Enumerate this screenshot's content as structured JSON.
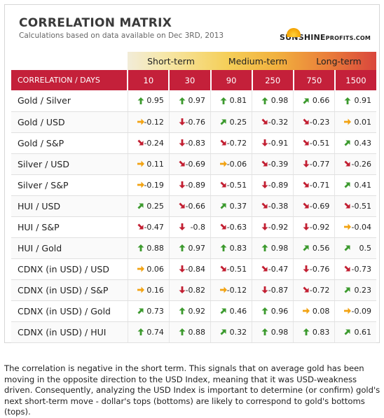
{
  "header": {
    "title": "CORRELATION MATRIX",
    "subtitle": "Calculations based on data available on Dec 3RD, 2013",
    "logo_main": "SUNSHINE",
    "logo_suffix": "PROFITS.COM"
  },
  "terms": {
    "short": "Short-term",
    "medium": "Medium-term",
    "long": "Long-term"
  },
  "columns": {
    "label": "CORRELATION / DAYS",
    "days": [
      "10",
      "30",
      "90",
      "250",
      "750",
      "1500"
    ]
  },
  "arrow_colors": {
    "up": "#3c9a2e",
    "up_diag": "#3c9a2e",
    "flat": "#f2a313",
    "down_diag": "#c21f32",
    "down": "#c21f32"
  },
  "rows": [
    {
      "pair": "Gold / Silver",
      "cells": [
        {
          "v": "0.95",
          "a": "up"
        },
        {
          "v": "0.97",
          "a": "up"
        },
        {
          "v": "0.81",
          "a": "up"
        },
        {
          "v": "0.98",
          "a": "up"
        },
        {
          "v": "0.66",
          "a": "up_diag"
        },
        {
          "v": "0.91",
          "a": "up"
        }
      ]
    },
    {
      "pair": "Gold / USD",
      "cells": [
        {
          "v": "-0.12",
          "a": "flat"
        },
        {
          "v": "-0.76",
          "a": "down"
        },
        {
          "v": "0.25",
          "a": "up_diag"
        },
        {
          "v": "-0.32",
          "a": "down_diag"
        },
        {
          "v": "-0.23",
          "a": "down_diag"
        },
        {
          "v": "0.01",
          "a": "flat"
        }
      ]
    },
    {
      "pair": "Gold / S&P",
      "cells": [
        {
          "v": "-0.24",
          "a": "down_diag"
        },
        {
          "v": "-0.83",
          "a": "down"
        },
        {
          "v": "-0.72",
          "a": "down_diag"
        },
        {
          "v": "-0.91",
          "a": "down"
        },
        {
          "v": "-0.51",
          "a": "down_diag"
        },
        {
          "v": "0.43",
          "a": "up_diag"
        }
      ]
    },
    {
      "pair": "Silver / USD",
      "cells": [
        {
          "v": "0.11",
          "a": "flat"
        },
        {
          "v": "-0.69",
          "a": "down_diag"
        },
        {
          "v": "-0.06",
          "a": "flat"
        },
        {
          "v": "-0.39",
          "a": "down_diag"
        },
        {
          "v": "-0.77",
          "a": "down"
        },
        {
          "v": "-0.26",
          "a": "down_diag"
        }
      ]
    },
    {
      "pair": "Silver / S&P",
      "cells": [
        {
          "v": "-0.19",
          "a": "flat"
        },
        {
          "v": "-0.89",
          "a": "down"
        },
        {
          "v": "-0.51",
          "a": "down_diag"
        },
        {
          "v": "-0.89",
          "a": "down"
        },
        {
          "v": "-0.71",
          "a": "down_diag"
        },
        {
          "v": "0.41",
          "a": "up_diag"
        }
      ]
    },
    {
      "pair": "HUI / USD",
      "cells": [
        {
          "v": "0.25",
          "a": "up_diag"
        },
        {
          "v": "-0.66",
          "a": "down_diag"
        },
        {
          "v": "0.37",
          "a": "up_diag"
        },
        {
          "v": "-0.38",
          "a": "down_diag"
        },
        {
          "v": "-0.69",
          "a": "down_diag"
        },
        {
          "v": "-0.51",
          "a": "down_diag"
        }
      ]
    },
    {
      "pair": "HUI / S&P",
      "cells": [
        {
          "v": "-0.47",
          "a": "down_diag"
        },
        {
          "v": "-0.8",
          "a": "down"
        },
        {
          "v": "-0.63",
          "a": "down_diag"
        },
        {
          "v": "-0.92",
          "a": "down"
        },
        {
          "v": "-0.92",
          "a": "down"
        },
        {
          "v": "-0.04",
          "a": "flat"
        }
      ]
    },
    {
      "pair": "HUI / Gold",
      "cells": [
        {
          "v": "0.88",
          "a": "up"
        },
        {
          "v": "0.97",
          "a": "up"
        },
        {
          "v": "0.83",
          "a": "up"
        },
        {
          "v": "0.98",
          "a": "up"
        },
        {
          "v": "0.56",
          "a": "up_diag"
        },
        {
          "v": "0.5",
          "a": "up_diag"
        }
      ]
    },
    {
      "pair": "CDNX (in USD) / USD",
      "cells": [
        {
          "v": "0.06",
          "a": "flat"
        },
        {
          "v": "-0.84",
          "a": "down"
        },
        {
          "v": "-0.51",
          "a": "down_diag"
        },
        {
          "v": "-0.47",
          "a": "down_diag"
        },
        {
          "v": "-0.76",
          "a": "down"
        },
        {
          "v": "-0.73",
          "a": "down_diag"
        }
      ]
    },
    {
      "pair": "CDNX (in USD) / S&P",
      "cells": [
        {
          "v": "0.16",
          "a": "flat"
        },
        {
          "v": "-0.82",
          "a": "down"
        },
        {
          "v": "-0.12",
          "a": "flat"
        },
        {
          "v": "-0.87",
          "a": "down"
        },
        {
          "v": "-0.72",
          "a": "down_diag"
        },
        {
          "v": "0.23",
          "a": "up_diag"
        }
      ]
    },
    {
      "pair": "CDNX (in USD) / Gold",
      "cells": [
        {
          "v": "0.73",
          "a": "up_diag"
        },
        {
          "v": "0.92",
          "a": "up"
        },
        {
          "v": "0.46",
          "a": "up_diag"
        },
        {
          "v": "0.96",
          "a": "up"
        },
        {
          "v": "0.08",
          "a": "flat"
        },
        {
          "v": "-0.09",
          "a": "flat"
        }
      ]
    },
    {
      "pair": "CDNX (in USD) / HUI",
      "cells": [
        {
          "v": "0.74",
          "a": "up"
        },
        {
          "v": "0.88",
          "a": "up"
        },
        {
          "v": "0.32",
          "a": "up_diag"
        },
        {
          "v": "0.98",
          "a": "up"
        },
        {
          "v": "0.83",
          "a": "up"
        },
        {
          "v": "0.61",
          "a": "up_diag"
        }
      ]
    }
  ],
  "footer": {
    "text": "The correlation is negative in the short term. This signals that on average gold has been moving in the opposite direction to the USD Index, meaning that it was USD-weakness driven. Consequently, analyzing the USD Index is important to determine (or confirm) gold's next short-term move - dollar's tops (bottoms) are likely to correspond to gold's bottoms (tops)."
  }
}
